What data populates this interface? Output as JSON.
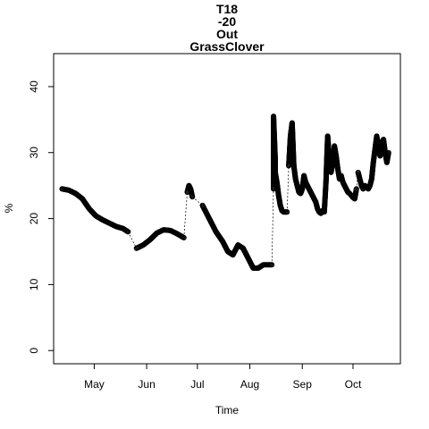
{
  "chart_data": {
    "type": "scatter",
    "title_lines": [
      "T18",
      "-20",
      "Out",
      "GrassClover"
    ],
    "xlabel": "Time",
    "ylabel": "%",
    "x_ticks": [
      {
        "date": "2014-05-01",
        "label": "May"
      },
      {
        "date": "2014-06-01",
        "label": "Jun"
      },
      {
        "date": "2014-07-01",
        "label": "Jul"
      },
      {
        "date": "2014-08-01",
        "label": "Aug"
      },
      {
        "date": "2014-09-01",
        "label": "Sep"
      },
      {
        "date": "2014-10-01",
        "label": "Oct"
      }
    ],
    "xlim": [
      "2014-04-07",
      "2014-10-29"
    ],
    "ylim": [
      -2,
      45
    ],
    "y_ticks": [
      0,
      10,
      20,
      30,
      40
    ],
    "grid": false,
    "marker": "open-circle",
    "color": "#000000",
    "series": [
      {
        "x": [
          "2014-04-12",
          "2014-04-16",
          "2014-04-20",
          "2014-04-24",
          "2014-04-28",
          "2014-05-02",
          "2014-05-06",
          "2014-05-10",
          "2014-05-14",
          "2014-05-18",
          "2014-05-21"
        ],
        "y": [
          24.5,
          24.3,
          23.8,
          23.0,
          21.5,
          20.4,
          19.8,
          19.3,
          18.8,
          18.5,
          18.0
        ]
      },
      {
        "x": [
          "2014-05-26",
          "2014-05-30",
          "2014-06-03",
          "2014-06-07",
          "2014-06-11",
          "2014-06-15",
          "2014-06-19",
          "2014-06-23"
        ],
        "y": [
          15.5,
          16.0,
          16.8,
          17.8,
          18.3,
          18.2,
          17.7,
          17.1
        ]
      },
      {
        "x": [
          "2014-06-25",
          "2014-06-26",
          "2014-06-27",
          "2014-06-28"
        ],
        "y": [
          24.0,
          25.0,
          24.5,
          23.3
        ]
      },
      {
        "x": [
          "2014-07-04",
          "2014-07-08",
          "2014-07-12",
          "2014-07-16",
          "2014-07-19",
          "2014-07-22",
          "2014-07-25",
          "2014-07-28",
          "2014-07-31",
          "2014-08-03",
          "2014-08-06",
          "2014-08-09",
          "2014-08-12",
          "2014-08-14"
        ],
        "y": [
          22.0,
          20.0,
          18.0,
          16.5,
          15.0,
          14.5,
          16.0,
          15.5,
          14.0,
          12.5,
          12.5,
          13.0,
          13.0,
          13.0
        ]
      },
      {
        "x": [
          "2014-08-15",
          "2014-08-15",
          "2014-08-16",
          "2014-08-16",
          "2014-08-17",
          "2014-08-18",
          "2014-08-19",
          "2014-08-20",
          "2014-08-21",
          "2014-08-22",
          "2014-08-23"
        ],
        "y": [
          24.5,
          35.5,
          29.0,
          27.0,
          25.5,
          23.5,
          22.0,
          21.2,
          21.0,
          21.0,
          21.0
        ]
      },
      {
        "x": [
          "2014-08-24",
          "2014-08-25",
          "2014-08-26",
          "2014-08-27",
          "2014-08-28",
          "2014-08-29",
          "2014-08-30",
          "2014-08-31",
          "2014-09-01",
          "2014-09-02",
          "2014-09-03",
          "2014-09-04",
          "2014-09-05",
          "2014-09-06",
          "2014-09-07",
          "2014-09-08",
          "2014-09-09",
          "2014-09-10",
          "2014-09-11",
          "2014-09-12",
          "2014-09-13"
        ],
        "y": [
          28.0,
          32.5,
          34.5,
          28.0,
          26.0,
          25.0,
          24.0,
          23.8,
          24.5,
          26.5,
          25.5,
          25.0,
          24.5,
          24.0,
          23.5,
          23.0,
          22.5,
          21.5,
          21.0,
          20.8,
          21.2
        ]
      },
      {
        "x": [
          "2014-09-14",
          "2014-09-15",
          "2014-09-16",
          "2014-09-17",
          "2014-09-18",
          "2014-09-19",
          "2014-09-20",
          "2014-09-21",
          "2014-09-22",
          "2014-09-23",
          "2014-09-24",
          "2014-09-25",
          "2014-09-26",
          "2014-09-27",
          "2014-09-28",
          "2014-09-29",
          "2014-09-30",
          "2014-10-01",
          "2014-10-02",
          "2014-10-03"
        ],
        "y": [
          21.0,
          25.5,
          32.5,
          29.0,
          27.0,
          28.5,
          31.0,
          29.5,
          27.5,
          26.0,
          26.5,
          25.5,
          25.0,
          24.5,
          24.0,
          23.8,
          23.5,
          23.2,
          23.0,
          24.5
        ]
      },
      {
        "x": [
          "2014-10-04",
          "2014-10-05",
          "2014-10-06",
          "2014-10-07",
          "2014-10-08",
          "2014-10-09",
          "2014-10-10",
          "2014-10-11",
          "2014-10-12",
          "2014-10-13",
          "2014-10-14",
          "2014-10-15",
          "2014-10-16",
          "2014-10-17",
          "2014-10-18",
          "2014-10-19",
          "2014-10-20",
          "2014-10-21",
          "2014-10-22"
        ],
        "y": [
          27.0,
          26.0,
          25.0,
          24.5,
          25.0,
          24.8,
          24.5,
          25.0,
          26.0,
          28.5,
          30.5,
          32.5,
          31.0,
          29.5,
          31.5,
          32.0,
          30.0,
          28.5,
          30.0
        ]
      }
    ]
  }
}
